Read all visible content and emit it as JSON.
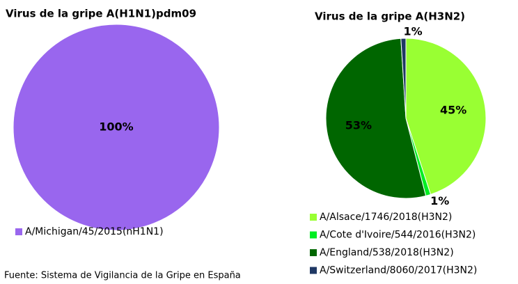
{
  "chart_data": [
    {
      "type": "pie",
      "title": "Virus de la gripe A(H1N1)pdm09",
      "categories": [
        "A/Michigan/45/2015(nH1N1)"
      ],
      "values": [
        100
      ],
      "value_labels": [
        "100%"
      ],
      "colors": [
        "#9966ee"
      ]
    },
    {
      "type": "pie",
      "title": "Virus de la gripe A(H3N2)",
      "categories": [
        "A/Alsace/1746/2018(H3N2)",
        "A/Cote d'Ivoire/544/2016(H3N2)",
        "A/England/538/2018(H3N2)",
        "A/Switzerland/8060/2017(H3N2)"
      ],
      "values": [
        45,
        1,
        53,
        1
      ],
      "value_labels": [
        "45%",
        "1%",
        "53%",
        "1%"
      ],
      "colors": [
        "#99ff33",
        "#00ee22",
        "#006600",
        "#1f3864"
      ]
    }
  ],
  "source": "Fuente:  Sistema de Vigilancia de la Gripe en España"
}
